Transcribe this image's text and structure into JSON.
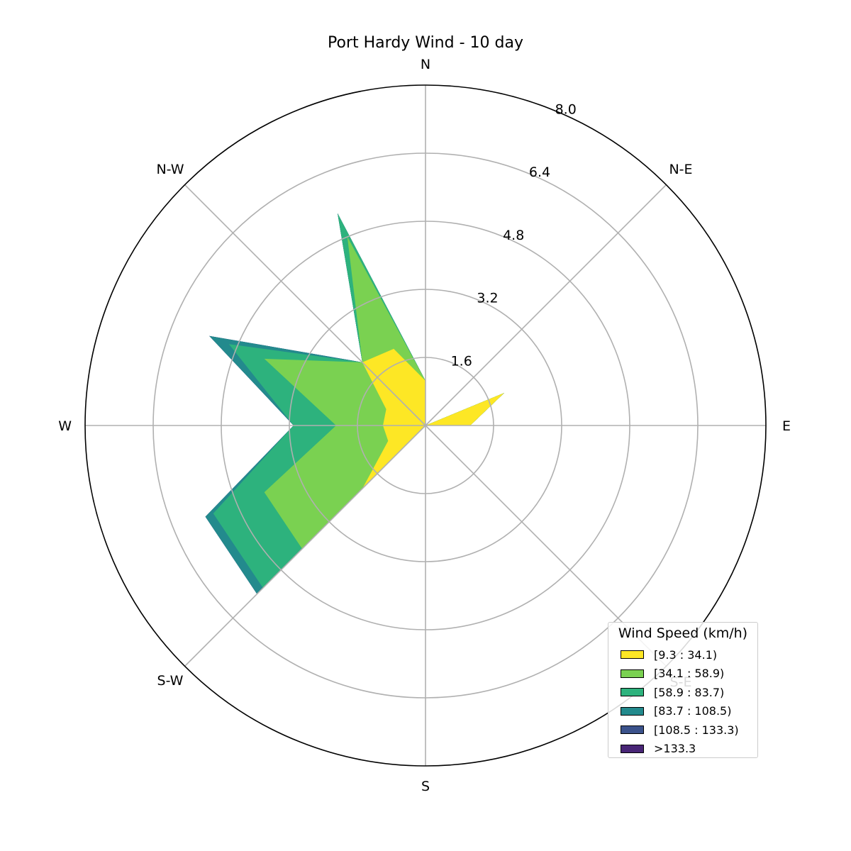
{
  "chart_data": {
    "type": "windrose",
    "title": "Port Hardy Wind - 10 day",
    "directions": [
      "N",
      "N-E",
      "E",
      "S-E",
      "S",
      "S-W",
      "W",
      "N-W"
    ],
    "radial_ticks": [
      "1.6",
      "3.2",
      "4.8",
      "6.4",
      "8.0"
    ],
    "radial_max": 8.0,
    "angles_deg": [
      0,
      22.5,
      45,
      67.5,
      90,
      112.5,
      135,
      157.5,
      180,
      202.5,
      225,
      247.5,
      270,
      292.5,
      315,
      337.5
    ],
    "legend": {
      "title": "Wind Speed (km/h)",
      "placement": "lower-right"
    },
    "series": [
      {
        "name": "[9.3 : 34.1)",
        "color": "#fde725",
        "values": [
          1.05,
          0.0,
          0.0,
          2.0,
          1.05,
          0.0,
          0.0,
          0.0,
          0.0,
          0.0,
          2.1,
          0.95,
          1.0,
          1.0,
          2.1,
          1.95
        ]
      },
      {
        "name": "[34.1 : 58.9)",
        "color": "#7ad151",
        "values": [
          1.05,
          0.0,
          0.0,
          2.0,
          1.05,
          0.0,
          0.0,
          0.0,
          0.0,
          0.0,
          4.1,
          4.1,
          2.1,
          4.1,
          2.1,
          4.8
        ]
      },
      {
        "name": "[58.9 : 83.7)",
        "color": "#2db27d",
        "values": [
          1.05,
          0.0,
          0.0,
          2.0,
          1.05,
          0.0,
          0.0,
          0.0,
          0.0,
          0.0,
          5.4,
          5.4,
          3.1,
          5.0,
          2.1,
          5.4
        ]
      },
      {
        "name": "[83.7 : 108.5)",
        "color": "#238a8d",
        "values": [
          1.05,
          0.0,
          0.0,
          2.0,
          1.05,
          0.0,
          0.0,
          0.0,
          0.0,
          0.0,
          5.6,
          5.6,
          3.1,
          5.5,
          2.1,
          5.4
        ]
      },
      {
        "name": "[108.5 : 133.3)",
        "color": "#3b528b",
        "values": [
          1.05,
          0.0,
          0.0,
          2.0,
          1.05,
          0.0,
          0.0,
          0.0,
          0.0,
          0.0,
          5.6,
          5.6,
          3.1,
          5.5,
          2.1,
          5.4
        ]
      },
      {
        "name": ">133.3",
        "color": "#482576",
        "values": [
          1.05,
          0.0,
          0.0,
          2.0,
          1.05,
          0.0,
          0.0,
          0.0,
          0.0,
          0.0,
          5.6,
          5.6,
          3.1,
          5.5,
          2.1,
          5.4
        ]
      }
    ],
    "grid": true
  }
}
